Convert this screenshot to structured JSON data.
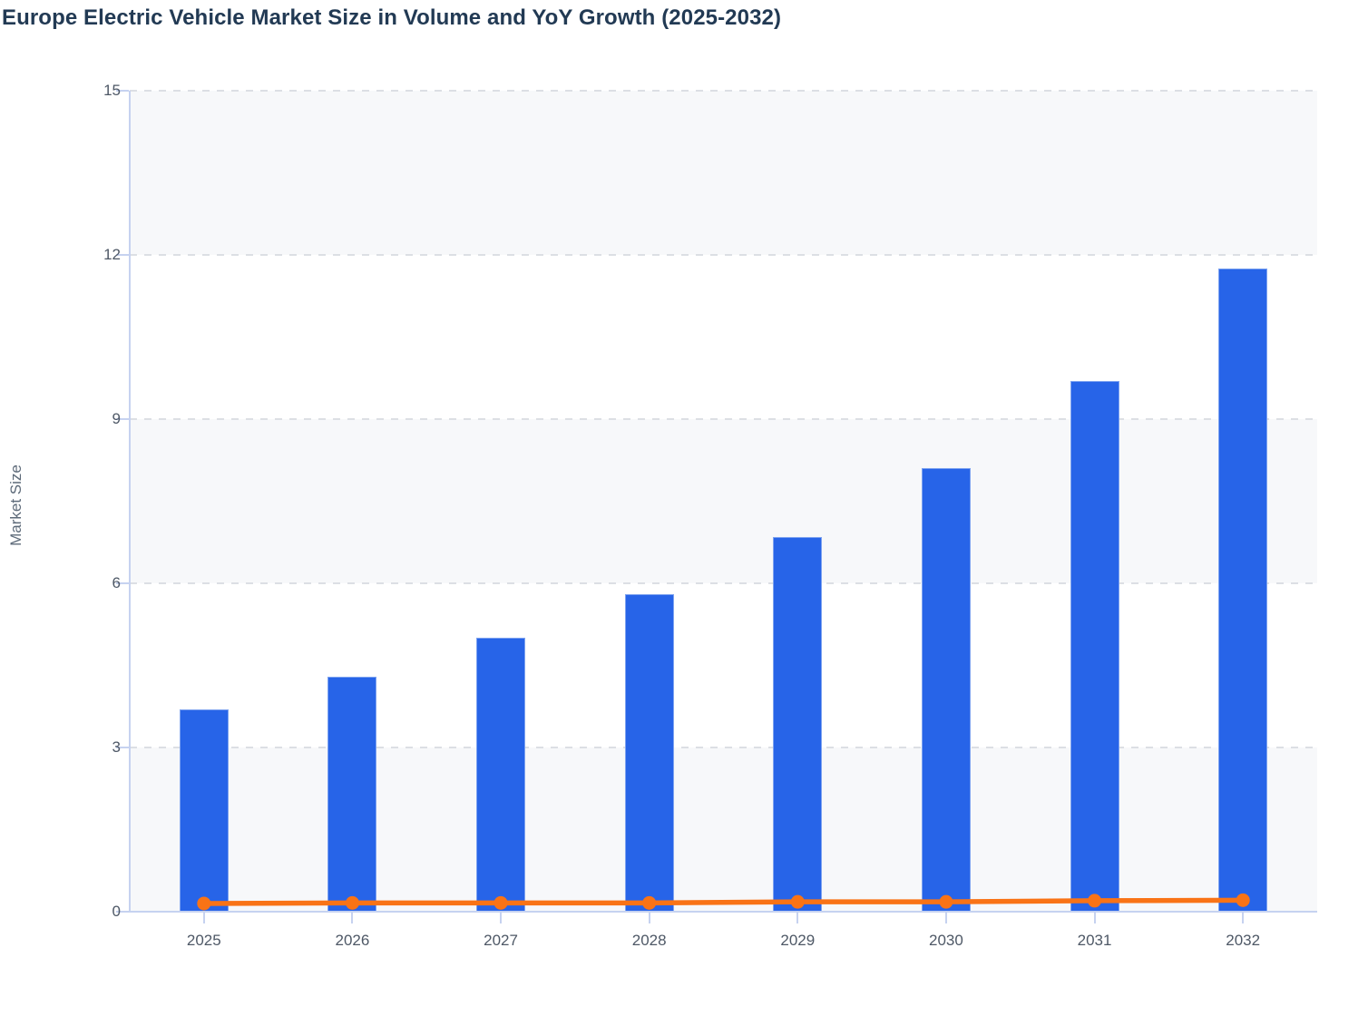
{
  "title": "Europe Electric Vehicle Market Size in Volume and YoY Growth (2025-2032)",
  "chart_data": {
    "type": "bar",
    "subtype": "combo-bar-line",
    "title": "Europe Electric Vehicle Market Size in Volume and YoY Growth (2025-2032)",
    "xlabel": "",
    "ylabel": "Market Size",
    "categories": [
      "2025",
      "2026",
      "2027",
      "2028",
      "2029",
      "2030",
      "2031",
      "2032"
    ],
    "series": [
      {
        "name": "Market Size (Volume)",
        "type": "bar",
        "values": [
          3.7,
          4.3,
          5.0,
          5.8,
          6.85,
          8.1,
          9.7,
          11.75
        ]
      },
      {
        "name": "YoY Growth",
        "type": "line",
        "values": [
          0.15,
          0.16,
          0.16,
          0.16,
          0.18,
          0.18,
          0.2,
          0.21
        ]
      }
    ],
    "ylim": [
      0,
      15
    ],
    "yticks": [
      0,
      3,
      6,
      9,
      12,
      15
    ],
    "grid": "horizontal-dashed",
    "plot_bands": "alternating horizontal stripes (light, starting at 0-3 band)",
    "legend": "none"
  },
  "colors": {
    "bar": "#2764e8",
    "bar_border": "#7ea3f0",
    "line": "#f97316",
    "title_text": "#223a54",
    "axis": "#c6d2f0",
    "grid": "#dcdfe4",
    "stripe": "#f7f8fa",
    "tick_label": "#4e5866",
    "ylabel_text": "#5d6a79",
    "background": "#ffffff"
  }
}
